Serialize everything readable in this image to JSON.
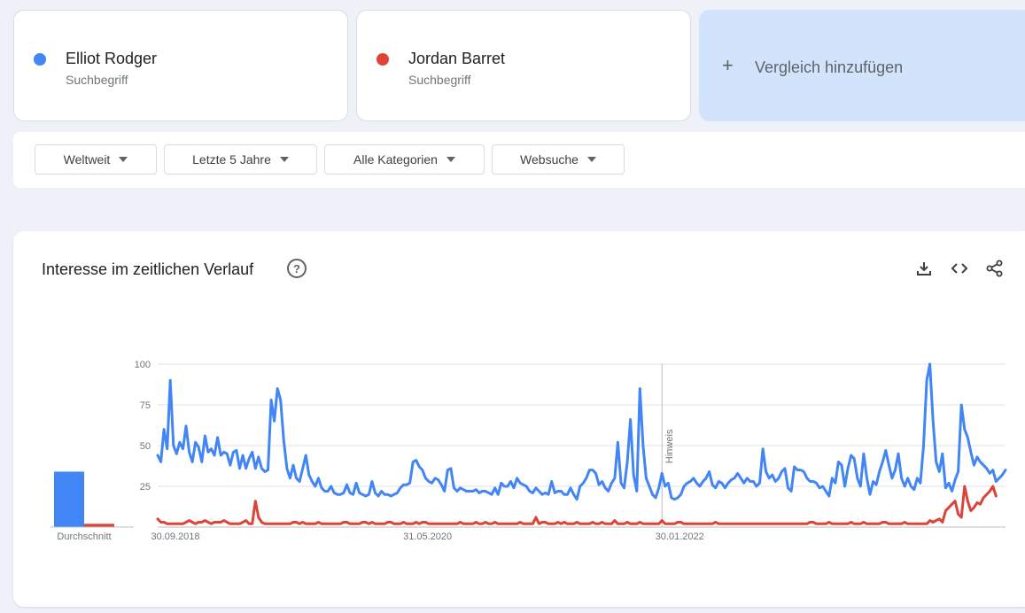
{
  "terms": [
    {
      "name": "Elliot Rodger",
      "type": "Suchbegriff",
      "color": "#4285f4"
    },
    {
      "name": "Jordan Barret",
      "type": "Suchbegriff",
      "color": "#db4437"
    }
  ],
  "add_compare": {
    "label": "Vergleich hinzufügen",
    "icon": "plus-icon"
  },
  "filters": [
    {
      "label": "Weltweit"
    },
    {
      "label": "Letzte 5 Jahre"
    },
    {
      "label": "Alle Kategorien"
    },
    {
      "label": "Websuche"
    }
  ],
  "panel": {
    "title": "Interesse im zeitlichen Verlauf",
    "icons": [
      "help-icon",
      "download-icon",
      "embed-code-icon",
      "share-icon"
    ]
  },
  "chart_data": {
    "type": "line",
    "title": "Interesse im zeitlichen Verlauf",
    "x_labels": [
      "30.09.2018",
      "31.05.2020",
      "30.01.2022"
    ],
    "ylim": [
      0,
      100
    ],
    "y_ticks": [
      25,
      50,
      75,
      100
    ],
    "grid": true,
    "annotation": {
      "text": "Hinweis",
      "at": "30.01.2022"
    },
    "average_label": "Durchschnitt",
    "averages": [
      {
        "name": "Elliot Rodger",
        "value": 34
      },
      {
        "name": "Jordan Barret",
        "value": 2
      }
    ],
    "series": [
      {
        "name": "Elliot Rodger",
        "color": "#4285f4",
        "values": [
          44,
          40,
          60,
          48,
          90,
          50,
          45,
          52,
          48,
          62,
          46,
          40,
          52,
          49,
          40,
          56,
          46,
          48,
          44,
          55,
          44,
          46,
          45,
          38,
          46,
          47,
          36,
          44,
          36,
          42,
          46,
          36,
          43,
          36,
          34,
          35,
          78,
          65,
          85,
          78,
          53,
          36,
          30,
          38,
          30,
          28,
          36,
          44,
          32,
          28,
          25,
          30,
          24,
          22,
          22,
          25,
          21,
          20,
          20,
          21,
          26,
          21,
          20,
          27,
          21,
          20,
          19,
          20,
          28,
          21,
          19,
          22,
          20,
          20,
          19,
          20,
          21,
          24,
          26,
          26,
          27,
          40,
          41,
          37,
          35,
          30,
          28,
          27,
          30,
          29,
          26,
          22,
          35,
          36,
          24,
          22,
          24,
          23,
          22,
          22,
          22,
          23,
          21,
          22,
          22,
          21,
          20,
          24,
          20,
          27,
          25,
          25,
          28,
          24,
          30,
          27,
          26,
          25,
          22,
          21,
          24,
          22,
          20,
          21,
          20,
          28,
          21,
          22,
          22,
          20,
          20,
          24,
          20,
          17,
          25,
          27,
          30,
          35,
          35,
          33,
          26,
          28,
          24,
          22,
          27,
          30,
          52,
          27,
          24,
          40,
          66,
          32,
          22,
          85,
          50,
          30,
          25,
          20,
          18,
          24,
          33,
          25,
          27,
          18,
          17,
          18,
          20,
          25,
          27,
          28,
          30,
          27,
          25,
          28,
          30,
          34,
          26,
          24,
          28,
          27,
          24,
          27,
          29,
          30,
          33,
          30,
          27,
          30,
          28,
          28,
          25,
          27,
          48,
          34,
          30,
          32,
          28,
          30,
          34,
          36,
          24,
          22,
          37,
          35,
          35,
          34,
          30,
          28,
          28,
          27,
          24,
          25,
          22,
          19,
          30,
          27,
          40,
          38,
          25,
          36,
          44,
          42,
          30,
          25,
          45,
          30,
          20,
          28,
          26,
          34,
          40,
          47,
          38,
          30,
          35,
          45,
          30,
          25,
          30,
          25,
          23,
          30,
          27,
          50,
          90,
          100,
          65,
          40,
          34,
          45,
          24,
          27,
          22,
          29,
          34,
          75,
          60,
          55,
          46,
          38,
          43,
          40,
          38,
          36,
          33,
          35,
          28,
          30,
          32,
          35
        ]
      },
      {
        "name": "Jordan Barret",
        "color": "#db4437",
        "values": [
          5,
          3,
          3,
          2,
          2,
          2,
          2,
          2,
          2,
          3,
          4,
          3,
          2,
          3,
          3,
          4,
          3,
          2,
          3,
          3,
          3,
          4,
          3,
          2,
          2,
          2,
          2,
          3,
          4,
          2,
          2,
          16,
          6,
          3,
          2,
          2,
          2,
          2,
          2,
          2,
          2,
          2,
          2,
          3,
          3,
          2,
          3,
          2,
          2,
          2,
          2,
          3,
          2,
          2,
          2,
          2,
          2,
          2,
          2,
          3,
          3,
          2,
          2,
          2,
          2,
          3,
          3,
          2,
          3,
          2,
          2,
          2,
          2,
          3,
          3,
          2,
          2,
          2,
          3,
          2,
          2,
          2,
          3,
          2,
          3,
          3,
          2,
          2,
          2,
          2,
          2,
          2,
          2,
          2,
          2,
          2,
          3,
          2,
          2,
          2,
          2,
          3,
          2,
          2,
          3,
          2,
          2,
          3,
          2,
          2,
          2,
          2,
          2,
          2,
          2,
          3,
          2,
          2,
          2,
          2,
          6,
          2,
          3,
          3,
          2,
          2,
          2,
          3,
          2,
          3,
          2,
          2,
          2,
          3,
          2,
          2,
          2,
          2,
          3,
          2,
          2,
          3,
          2,
          2,
          2,
          4,
          2,
          2,
          2,
          3,
          2,
          2,
          2,
          3,
          2,
          2,
          2,
          2,
          2,
          2,
          4,
          2,
          2,
          2,
          2,
          3,
          3,
          2,
          2,
          2,
          2,
          2,
          2,
          2,
          2,
          2,
          2,
          3,
          2,
          2,
          2,
          2,
          2,
          2,
          2,
          2,
          2,
          2,
          2,
          2,
          2,
          2,
          2,
          2,
          2,
          2,
          2,
          2,
          2,
          2,
          2,
          2,
          2,
          2,
          2,
          2,
          2,
          3,
          3,
          2,
          2,
          2,
          2,
          3,
          2,
          2,
          2,
          2,
          2,
          2,
          3,
          2,
          2,
          2,
          3,
          2,
          2,
          2,
          2,
          2,
          3,
          3,
          2,
          2,
          2,
          2,
          2,
          3,
          2,
          2,
          2,
          2,
          2,
          2,
          2,
          4,
          3,
          4,
          5,
          3,
          10,
          12,
          14,
          16,
          8,
          6,
          25,
          16,
          10,
          12,
          15,
          14,
          18,
          20,
          22,
          25,
          19
        ]
      }
    ]
  }
}
